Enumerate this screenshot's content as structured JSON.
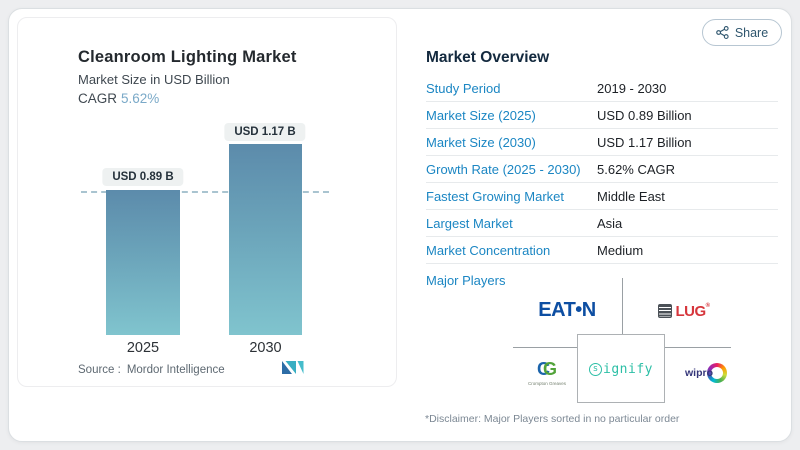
{
  "colors": {
    "accent_blue": "#1b86c3",
    "cagr_blue": "#7aa9c8",
    "bar_gradient_top": "#5c8bab",
    "bar_gradient_bottom": "#80c4ce",
    "heading_navy": "#13293e",
    "eaton_blue": "#0d4ea2",
    "lug_red": "#d6363c",
    "signify_teal": "#2dbfa6",
    "wipro_navy": "#343579"
  },
  "share": {
    "label": "Share"
  },
  "chart": {
    "title": "Cleanroom Lighting Market",
    "subtitle": "Market Size in USD Billion",
    "cagr_label": "CAGR",
    "cagr_value": "5.62%",
    "bars": [
      {
        "year": "2025",
        "label": "USD 0.89 B"
      },
      {
        "year": "2030",
        "label": "USD 1.17 B"
      }
    ],
    "source_label": "Source :",
    "source_value": "Mordor Intelligence"
  },
  "chart_data": {
    "type": "bar",
    "title": "Cleanroom Lighting Market",
    "subtitle": "Market Size in USD Billion",
    "categories": [
      "2025",
      "2030"
    ],
    "values": [
      0.89,
      1.17
    ],
    "bar_labels": [
      "USD 0.89 B",
      "USD 1.17 B"
    ],
    "unit": "USD Billion",
    "cagr": "5.62%",
    "ylim": [
      0,
      1.3
    ],
    "grid": false,
    "annotations": [
      "horizontal dashed reference line at 2025 value (0.89)"
    ]
  },
  "overview": {
    "heading": "Market Overview",
    "rows": [
      {
        "label": "Study Period",
        "value": "2019 - 2030"
      },
      {
        "label": "Market Size (2025)",
        "value": "USD 0.89 Billion"
      },
      {
        "label": "Market Size (2030)",
        "value": "USD 1.17 Billion"
      },
      {
        "label": "Growth Rate (2025 - 2030)",
        "value": "5.62% CAGR"
      },
      {
        "label": "Fastest Growing Market",
        "value": "Middle East"
      },
      {
        "label": "Largest Market",
        "value": "Asia"
      },
      {
        "label": "Market Concentration",
        "value": "Medium"
      }
    ],
    "major_players_label": "Major Players",
    "players": {
      "eaton": {
        "text": "EAT•N"
      },
      "lug": {
        "text": "LUG",
        "reg": "®"
      },
      "crompton": {
        "c": "C",
        "g": "G",
        "caption": "Crompton Greaves"
      },
      "signify": {
        "s": "s",
        "rest": "ignify"
      },
      "wipro": {
        "text": "wipro"
      }
    },
    "disclaimer": "*Disclaimer: Major Players sorted in no particular order"
  }
}
